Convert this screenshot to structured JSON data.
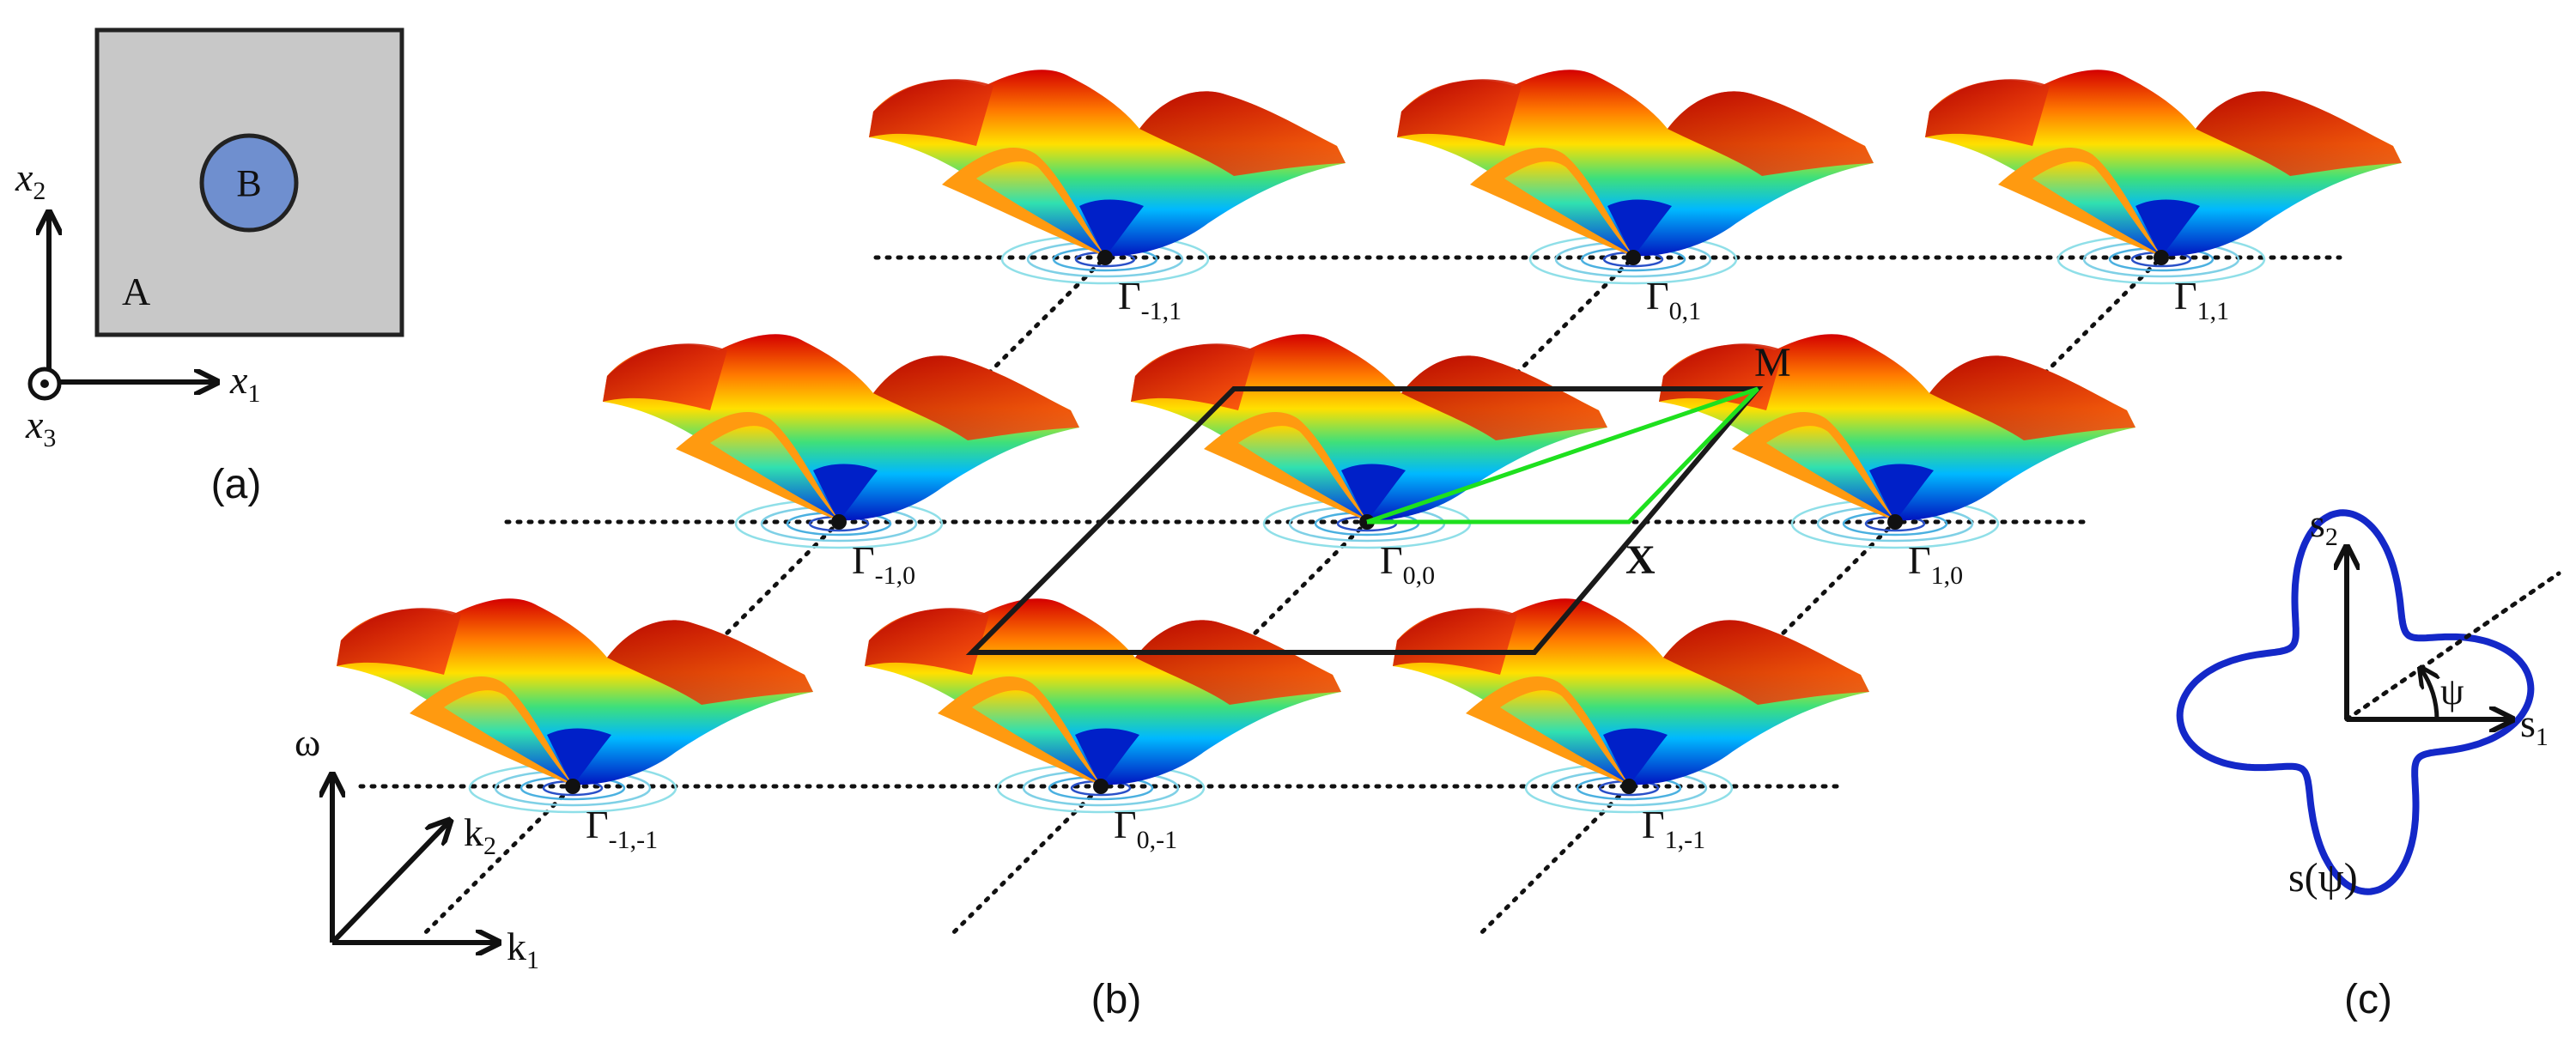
{
  "panel_a": {
    "matrix_label": "A",
    "inclusion_label": "B",
    "axis_x1": "x",
    "axis_x1_sub": "1",
    "axis_x2": "x",
    "axis_x2_sub": "2",
    "axis_x3": "x",
    "axis_x3_sub": "3",
    "caption": "(a)",
    "colors": {
      "matrix": "#c8c8c8",
      "inclusion": "#6f8fcf"
    }
  },
  "panel_b": {
    "caption": "(b)",
    "lattice": [
      {
        "name": "Γ",
        "sub": "-1,1"
      },
      {
        "name": "Γ",
        "sub": "0,1"
      },
      {
        "name": "Γ",
        "sub": "1,1"
      },
      {
        "name": "Γ",
        "sub": "-1,0"
      },
      {
        "name": "Γ",
        "sub": "0,0"
      },
      {
        "name": "Γ",
        "sub": "1,0"
      },
      {
        "name": "Γ",
        "sub": "-1,-1"
      },
      {
        "name": "Γ",
        "sub": "0,-1"
      },
      {
        "name": "Γ",
        "sub": "1,-1"
      }
    ],
    "point_M": "M",
    "point_X": "X",
    "axis_omega": "ω",
    "axis_k1": "k",
    "axis_k1_sub": "1",
    "axis_k2": "k",
    "axis_k2_sub": "2",
    "colors": {
      "brillouin_zone": "#1a1a1a",
      "ibz_path": "#1ee01e"
    }
  },
  "panel_c": {
    "caption": "(c)",
    "axis_s1": "s",
    "axis_s1_sub": "1",
    "axis_s2": "s",
    "axis_s2_sub": "2",
    "angle_label": "ψ",
    "curve_label": "s(ψ)",
    "colors": {
      "curve": "#1428c8"
    }
  }
}
